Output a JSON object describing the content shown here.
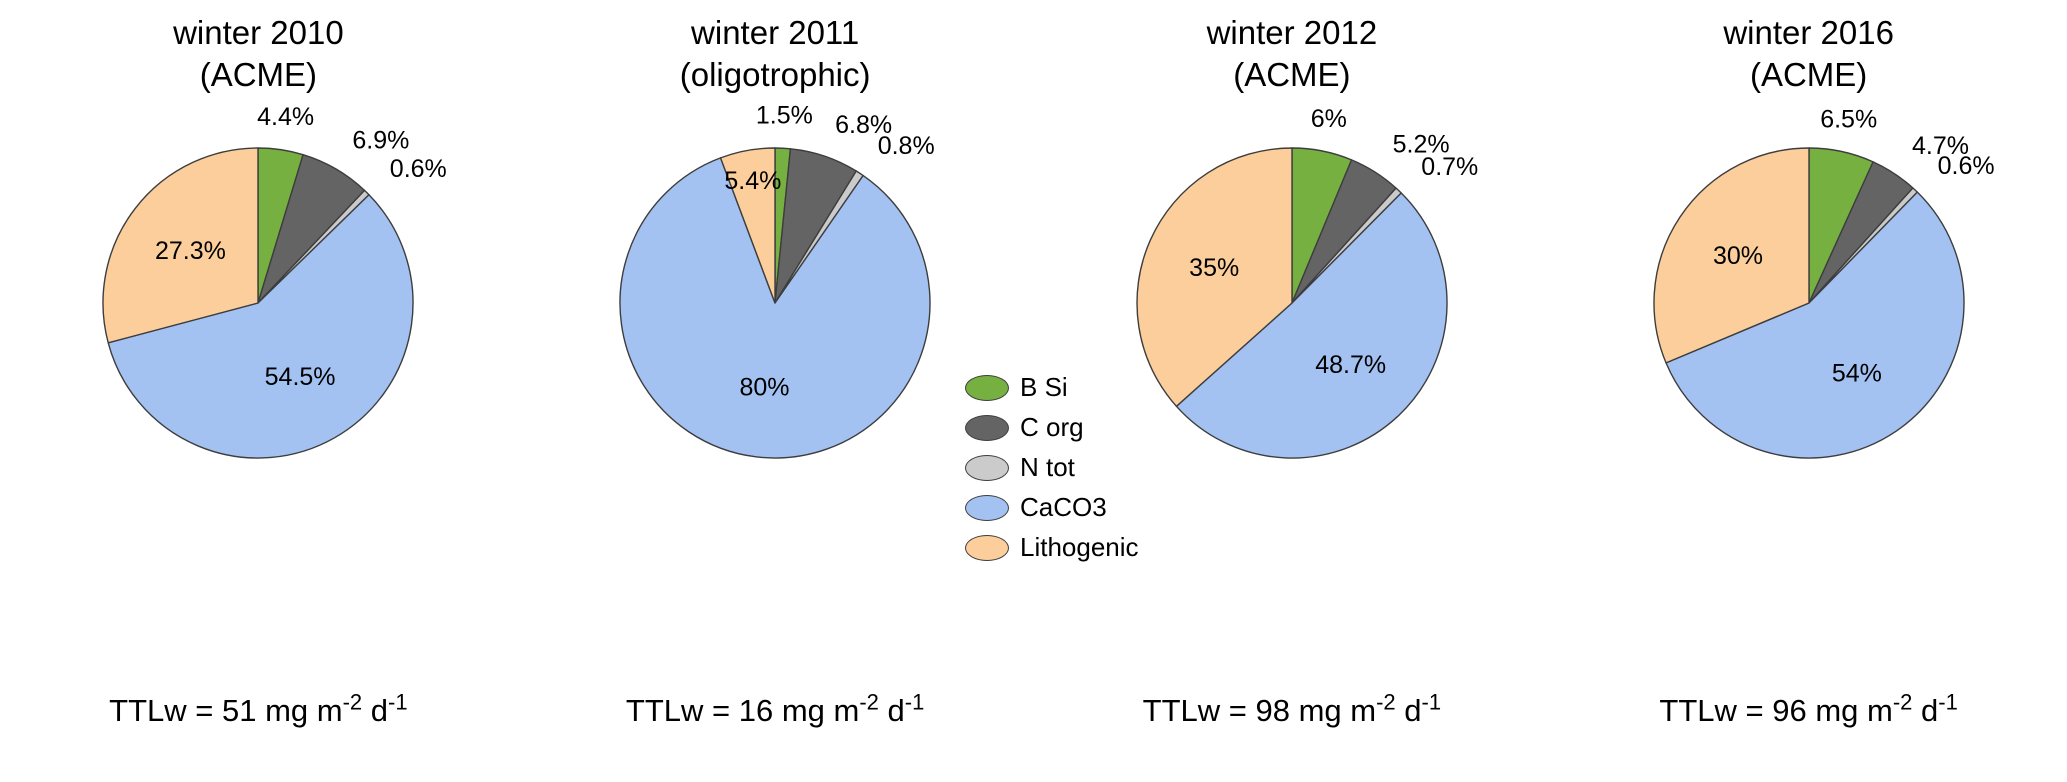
{
  "series": [
    {
      "name": "B Si",
      "color": "#76b041"
    },
    {
      "name": "C org",
      "color": "#646464"
    },
    {
      "name": "N tot",
      "color": "#cbcbcb"
    },
    {
      "name": "CaCO3",
      "color": "#a3c2f2"
    },
    {
      "name": "Lithogenic",
      "color": "#fbce9c"
    }
  ],
  "stroke_color": "#3d3d3d",
  "legend": {
    "marker_shape": "ellipse",
    "items": [
      "B Si",
      "C org",
      "N tot",
      "CaCO3",
      "Lithogenic"
    ]
  },
  "chart_data": [
    {
      "type": "pie",
      "title_line1": "winter 2010",
      "title_line2": "(ACME)",
      "categories": [
        "B Si",
        "C org",
        "N tot",
        "CaCO3",
        "Lithogenic"
      ],
      "values": [
        4.4,
        6.9,
        0.6,
        54.5,
        27.3
      ],
      "value_labels": [
        "4.4%",
        "6.9%",
        "0.6%",
        "54.5%",
        "27.3%"
      ],
      "label_placement": [
        "outside",
        "outside",
        "outside",
        "inside",
        "inside"
      ],
      "start_angle_deg": 0,
      "direction": "clockwise",
      "caption": {
        "main": "TTLw = 51 mg m",
        "sup1": "-2",
        "mid": " d",
        "sup2": "-1"
      },
      "ttlw_value": "51"
    },
    {
      "type": "pie",
      "title_line1": "winter 2011",
      "title_line2": "(oligotrophic)",
      "categories": [
        "B Si",
        "C org",
        "N tot",
        "CaCO3",
        "Lithogenic"
      ],
      "values": [
        1.5,
        6.8,
        0.8,
        80,
        5.4
      ],
      "value_labels": [
        "1.5%",
        "6.8%",
        "0.8%",
        "80%",
        "5.4%"
      ],
      "label_placement": [
        "outside",
        "outside",
        "outside",
        "inside",
        "inside"
      ],
      "start_angle_deg": 0,
      "direction": "clockwise",
      "caption": {
        "main": "TTLw = 16 mg m",
        "sup1": "-2",
        "mid": " d",
        "sup2": "-1"
      },
      "ttlw_value": "16"
    },
    {
      "type": "pie",
      "title_line1": "winter 2012",
      "title_line2": "(ACME)",
      "categories": [
        "B Si",
        "C org",
        "N tot",
        "CaCO3",
        "Lithogenic"
      ],
      "values": [
        6,
        5.2,
        0.7,
        48.7,
        35
      ],
      "value_labels": [
        "6%",
        "5.2%",
        "0.7%",
        "48.7%",
        "35%"
      ],
      "label_placement": [
        "outside",
        "outside",
        "outside",
        "inside",
        "inside"
      ],
      "start_angle_deg": 0,
      "direction": "clockwise",
      "caption": {
        "main": "TTLw = 98 mg m",
        "sup1": "-2",
        "mid": " d",
        "sup2": "-1"
      },
      "ttlw_value": "98"
    },
    {
      "type": "pie",
      "title_line1": "winter 2016",
      "title_line2": "(ACME)",
      "categories": [
        "B Si",
        "C org",
        "N tot",
        "CaCO3",
        "Lithogenic"
      ],
      "values": [
        6.5,
        4.7,
        0.6,
        54,
        30
      ],
      "value_labels": [
        "6.5%",
        "4.7%",
        "0.6%",
        "54%",
        "30%"
      ],
      "label_placement": [
        "outside",
        "outside",
        "outside",
        "inside",
        "inside"
      ],
      "start_angle_deg": 0,
      "direction": "clockwise",
      "caption": {
        "main": "TTLw = 96 mg m",
        "sup1": "-2",
        "mid": " d",
        "sup2": "-1"
      },
      "ttlw_value": "96"
    }
  ]
}
